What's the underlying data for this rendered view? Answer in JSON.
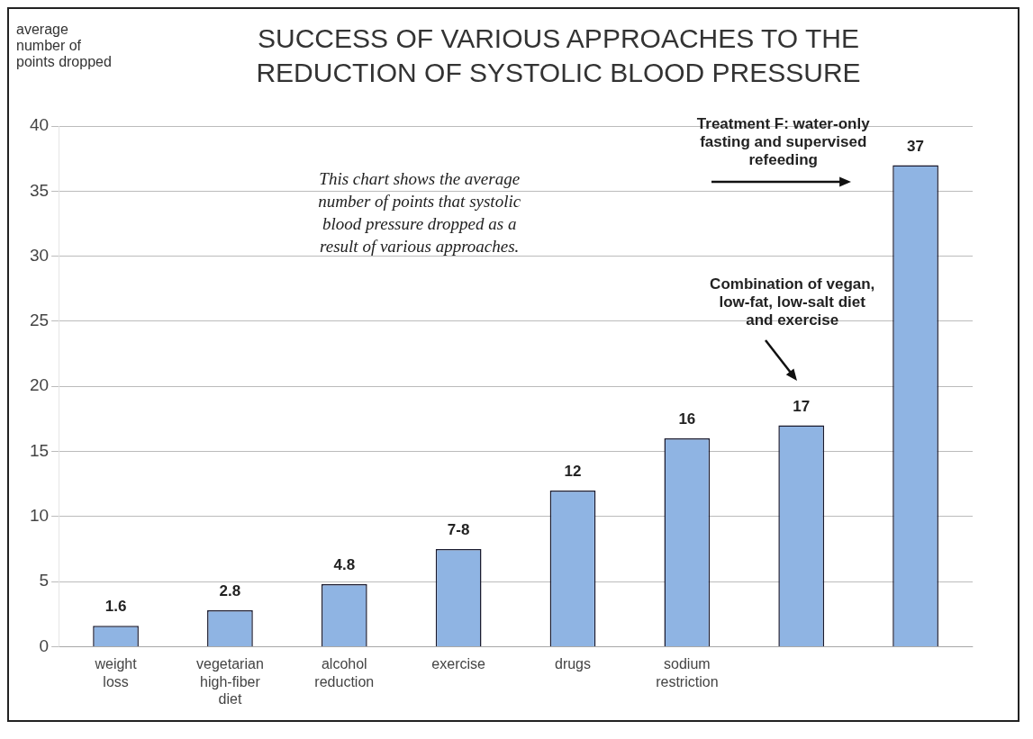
{
  "chart_data": {
    "type": "bar",
    "title": "SUCCESS OF VARIOUS APPROACHES TO THE REDUCTION OF SYSTOLIC BLOOD PRESSURE",
    "ylabel": "average number of points dropped",
    "categories": [
      "weight loss",
      "vegetarian high-fiber diet",
      "alcohol reduction",
      "exercise",
      "drugs",
      "sodium restriction",
      null,
      null
    ],
    "values": [
      1.6,
      2.8,
      4.8,
      7.5,
      12,
      16,
      17,
      37
    ],
    "value_labels": [
      "1.6",
      "2.8",
      "4.8",
      "7-8",
      "12",
      "16",
      "17",
      "37"
    ],
    "color": "#8fb4e3",
    "ylim": [
      0,
      40
    ],
    "yticks": [
      0,
      5,
      10,
      15,
      20,
      25,
      30,
      35,
      40
    ],
    "grid": "y",
    "legend": false,
    "annotations": [
      "This chart shows the average number of points that systolic blood pressure dropped as a result of various approaches.",
      "Treatment F: water-only fasting and supervised refeeding",
      "Combination of vegan, low-fat, low-salt diet and exercise"
    ]
  }
}
